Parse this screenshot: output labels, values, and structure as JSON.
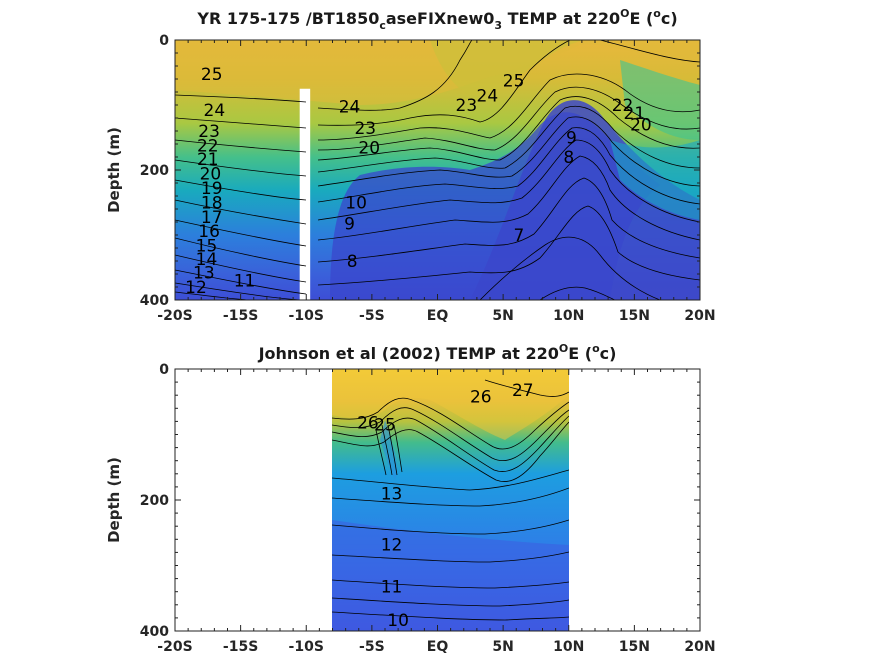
{
  "chart_data": [
    {
      "type": "contour",
      "title": {
        "pre": "YR 175-175 /BT1850",
        "sub1": "c",
        "mid": "aseFIXnew0",
        "sub2": "3",
        "post": " TEMP at 220",
        "sup1": "O",
        "post2": "E (",
        "sup2": "o",
        "post3": "c)"
      },
      "xlabel": "",
      "ylabel": "Depth (m)",
      "xlim": [
        -20,
        20
      ],
      "ylim": [
        0,
        400
      ],
      "y_reversed": true,
      "xticks": [
        -20,
        -15,
        -10,
        -5,
        0,
        5,
        10,
        15,
        20
      ],
      "xtick_labels": [
        "-20S",
        "-15S",
        "-10S",
        "-5S",
        "EQ",
        "5N",
        "10N",
        "15N",
        "20N"
      ],
      "yticks": [
        0,
        200,
        400
      ],
      "ytick_labels": [
        "0",
        "200",
        "400"
      ],
      "data_gap": {
        "x_from": -10.5,
        "x_to": -9.7,
        "depth_from": 75,
        "depth_to": 400
      },
      "contour_labels": [
        {
          "text": "25",
          "x": -17.2,
          "y": 52
        },
        {
          "text": "24",
          "x": -17.0,
          "y": 108
        },
        {
          "text": "23",
          "x": -17.4,
          "y": 140
        },
        {
          "text": "22",
          "x": -17.5,
          "y": 162
        },
        {
          "text": "21",
          "x": -17.5,
          "y": 183
        },
        {
          "text": "20",
          "x": -17.3,
          "y": 205
        },
        {
          "text": "19",
          "x": -17.2,
          "y": 228
        },
        {
          "text": "18",
          "x": -17.2,
          "y": 250
        },
        {
          "text": "17",
          "x": -17.2,
          "y": 272
        },
        {
          "text": "16",
          "x": -17.4,
          "y": 294
        },
        {
          "text": "15",
          "x": -17.6,
          "y": 316
        },
        {
          "text": "14",
          "x": -17.6,
          "y": 337
        },
        {
          "text": "13",
          "x": -17.8,
          "y": 358
        },
        {
          "text": "12",
          "x": -18.4,
          "y": 380
        },
        {
          "text": "11",
          "x": -14.7,
          "y": 370
        },
        {
          "text": "24",
          "x": -6.7,
          "y": 102
        },
        {
          "text": "23",
          "x": -5.5,
          "y": 135
        },
        {
          "text": "20",
          "x": -5.2,
          "y": 165
        },
        {
          "text": "10",
          "x": -6.2,
          "y": 250
        },
        {
          "text": "9",
          "x": -6.7,
          "y": 282
        },
        {
          "text": "8",
          "x": -6.5,
          "y": 340
        },
        {
          "text": "23",
          "x": 2.2,
          "y": 100
        },
        {
          "text": "24",
          "x": 3.8,
          "y": 85
        },
        {
          "text": "25",
          "x": 5.8,
          "y": 62
        },
        {
          "text": "7",
          "x": 6.2,
          "y": 300
        },
        {
          "text": "8",
          "x": 10.0,
          "y": 180
        },
        {
          "text": "9",
          "x": 10.2,
          "y": 150
        },
        {
          "text": "22",
          "x": 14.1,
          "y": 100
        },
        {
          "text": "21",
          "x": 15.0,
          "y": 112
        },
        {
          "text": "20",
          "x": 15.5,
          "y": 130
        }
      ]
    },
    {
      "type": "contour",
      "title": {
        "pre": "Johnson et al (2002) TEMP at 220",
        "sup1": "O",
        "post2": "E (",
        "sup2": "o",
        "post3": "c)"
      },
      "xlabel": "",
      "ylabel": "Depth (m)",
      "xlim": [
        -20,
        20
      ],
      "ylim": [
        0,
        400
      ],
      "y_reversed": true,
      "xticks": [
        -20,
        -15,
        -10,
        -5,
        0,
        5,
        10,
        15,
        20
      ],
      "xtick_labels": [
        "-20S",
        "-15S",
        "-10S",
        "-5S",
        "EQ",
        "5N",
        "10N",
        "15N",
        "20N"
      ],
      "yticks": [
        0,
        200,
        400
      ],
      "ytick_labels": [
        "0",
        "200",
        "400"
      ],
      "data_extent": {
        "x_from": -8,
        "x_to": 10
      },
      "contour_labels": [
        {
          "text": "26",
          "x": 3.3,
          "y": 42
        },
        {
          "text": "27",
          "x": 6.5,
          "y": 32
        },
        {
          "text": "26",
          "x": -5.3,
          "y": 82
        },
        {
          "text": "25",
          "x": -4.0,
          "y": 85
        },
        {
          "text": "13",
          "x": -3.5,
          "y": 190
        },
        {
          "text": "12",
          "x": -3.5,
          "y": 268
        },
        {
          "text": "11",
          "x": -3.5,
          "y": 332
        },
        {
          "text": "10",
          "x": -3.0,
          "y": 383
        }
      ]
    }
  ]
}
